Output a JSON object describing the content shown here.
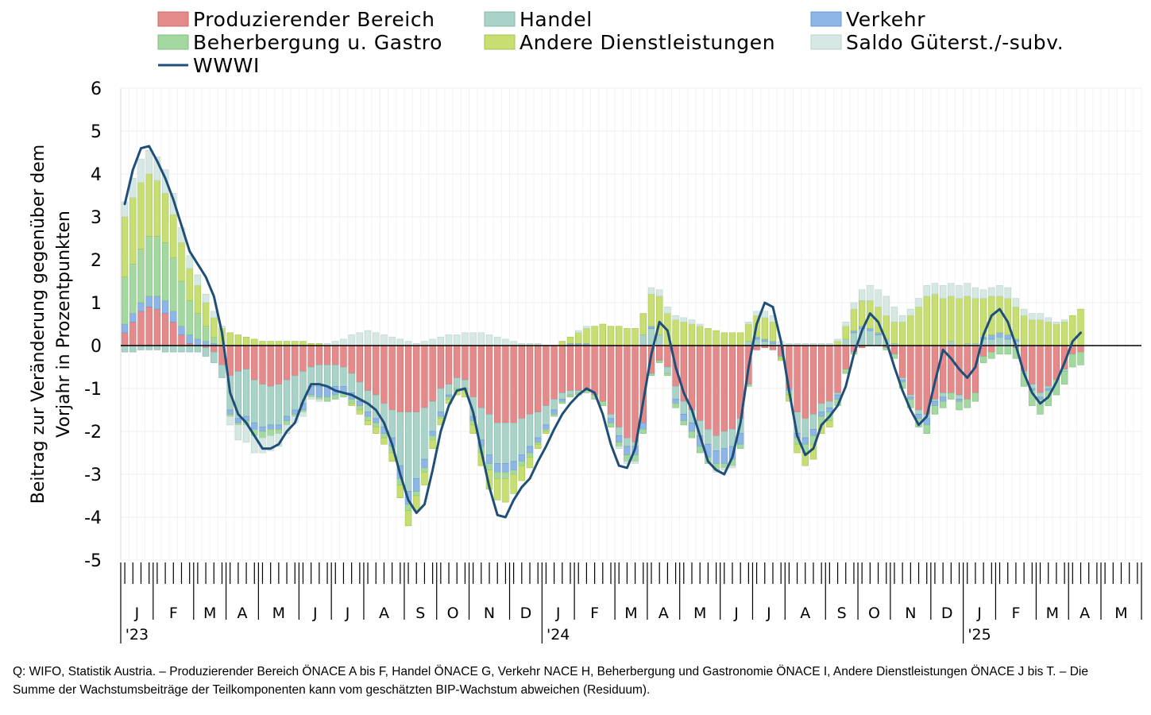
{
  "chart_data": {
    "type": "bar",
    "stacked": true,
    "title": "",
    "ylabel_lines": [
      "Beitrag zur Veränderung gegenüber dem",
      "Vorjahr in Prozentpunkten"
    ],
    "xlabel": "",
    "ylim": [
      -5,
      6
    ],
    "yticks": [
      6,
      5,
      4,
      3,
      2,
      1,
      0,
      -1,
      -2,
      -3,
      -4,
      -5
    ],
    "grid": true,
    "legend_position": "top",
    "weeks_per_month": [
      4,
      5,
      4,
      4,
      5,
      4,
      4,
      5,
      4,
      4,
      5,
      4,
      4,
      5,
      4,
      4,
      5,
      4,
      4,
      5,
      4,
      4,
      5,
      4,
      4,
      5,
      4,
      4,
      5
    ],
    "months": [
      "J",
      "F",
      "M",
      "A",
      "M",
      "J",
      "J",
      "A",
      "S",
      "O",
      "N",
      "D",
      "J",
      "F",
      "M",
      "A",
      "M",
      "J",
      "J",
      "A",
      "S",
      "O",
      "N",
      "D",
      "J",
      "F",
      "M",
      "A",
      "M"
    ],
    "year_labels": [
      {
        "label": "'23",
        "month_index": 0
      },
      {
        "label": "'24",
        "month_index": 12
      },
      {
        "label": "'25",
        "month_index": 24
      }
    ],
    "series": [
      {
        "key": "prod",
        "name": "Produzierender Bereich",
        "color": "#e58a8a",
        "edge": "#c96d6d"
      },
      {
        "key": "handel",
        "name": "Handel",
        "color": "#a9d3c8",
        "edge": "#86b7aa"
      },
      {
        "key": "verkehr",
        "name": "Verkehr",
        "color": "#8db6e6",
        "edge": "#6a98cf"
      },
      {
        "key": "beh",
        "name": "Beherbergung u. Gastro",
        "color": "#a4d8a1",
        "edge": "#84bd81"
      },
      {
        "key": "andere",
        "name": "Andere Dienstleistungen",
        "color": "#c7df72",
        "edge": "#a7c24e"
      },
      {
        "key": "saldo",
        "name": "Saldo Güterst./-subv.",
        "color": "#d6e8e3",
        "edge": "#b9d2cb"
      },
      {
        "key": "wwwi",
        "name": "WWWI",
        "color": "#1f4e79",
        "type": "line"
      }
    ],
    "values": {
      "wwwi": [
        3.3,
        4.1,
        4.6,
        4.65,
        4.3,
        3.9,
        3.4,
        2.8,
        2.2,
        1.9,
        1.6,
        1.15,
        0.3,
        -1.1,
        -1.6,
        -1.8,
        -2.1,
        -2.4,
        -2.4,
        -2.3,
        -2.0,
        -1.8,
        -1.3,
        -0.9,
        -0.9,
        -0.95,
        -1.05,
        -1.1,
        -1.15,
        -1.25,
        -1.35,
        -1.5,
        -1.8,
        -2.3,
        -3.0,
        -3.6,
        -3.9,
        -3.7,
        -2.9,
        -2.0,
        -1.4,
        -1.05,
        -1.0,
        -1.55,
        -2.45,
        -3.3,
        -3.95,
        -4.0,
        -3.6,
        -3.3,
        -3.1,
        -2.7,
        -2.35,
        -1.95,
        -1.6,
        -1.35,
        -1.15,
        -1.0,
        -1.1,
        -1.6,
        -2.3,
        -2.8,
        -2.85,
        -2.4,
        -1.3,
        -0.2,
        0.55,
        0.35,
        -0.5,
        -1.1,
        -1.5,
        -2.1,
        -2.7,
        -2.9,
        -3.0,
        -2.6,
        -1.8,
        -0.5,
        0.5,
        1.0,
        0.9,
        0.1,
        -1.05,
        -2.1,
        -2.55,
        -2.4,
        -1.85,
        -1.65,
        -1.4,
        -0.95,
        -0.2,
        0.35,
        0.75,
        0.55,
        0.1,
        -0.5,
        -1.05,
        -1.5,
        -1.85,
        -1.65,
        -0.85,
        -0.1,
        -0.3,
        -0.55,
        -0.75,
        -0.5,
        0.25,
        0.7,
        0.85,
        0.55,
        0.0,
        -0.65,
        -1.1,
        -1.35,
        -1.2,
        -0.85,
        -0.4,
        0.1,
        0.3
      ],
      "prod": [
        0.3,
        0.55,
        0.8,
        0.9,
        0.85,
        0.75,
        0.55,
        0.25,
        0.05,
        0.0,
        -0.05,
        -0.15,
        -0.45,
        -0.7,
        -0.6,
        -0.55,
        -0.8,
        -0.9,
        -0.95,
        -0.9,
        -0.8,
        -0.7,
        -0.6,
        -0.5,
        -0.45,
        -0.45,
        -0.45,
        -0.5,
        -0.65,
        -0.85,
        -1.05,
        -1.15,
        -1.35,
        -1.5,
        -1.55,
        -1.55,
        -1.55,
        -1.45,
        -1.3,
        -1.0,
        -0.9,
        -0.75,
        -0.8,
        -1.2,
        -1.45,
        -1.6,
        -1.8,
        -1.8,
        -1.8,
        -1.7,
        -1.6,
        -1.55,
        -1.4,
        -1.25,
        -1.1,
        -1.05,
        -1.05,
        -1.05,
        -1.15,
        -1.3,
        -1.6,
        -1.9,
        -2.15,
        -2.25,
        -1.8,
        -0.65,
        -0.35,
        -0.5,
        -0.95,
        -1.3,
        -1.5,
        -1.75,
        -1.95,
        -2.1,
        -2.0,
        -1.95,
        -1.7,
        -0.9,
        -0.1,
        -0.05,
        -0.1,
        -0.25,
        -1.0,
        -1.55,
        -1.7,
        -1.6,
        -1.35,
        -1.3,
        -1.1,
        -0.55,
        -0.15,
        -0.05,
        0.0,
        0.0,
        -0.05,
        -0.2,
        -0.75,
        -1.15,
        -1.5,
        -1.6,
        -1.25,
        -1.1,
        -1.1,
        -1.15,
        -1.25,
        -1.1,
        -0.25,
        -0.15,
        0.0,
        0.0,
        -0.05,
        -0.6,
        -0.9,
        -1.1,
        -0.95,
        -0.8,
        -0.55,
        -0.2,
        -0.15
      ],
      "handel": [
        -0.15,
        -0.15,
        -0.1,
        -0.1,
        -0.1,
        -0.15,
        -0.15,
        -0.15,
        -0.15,
        -0.15,
        -0.2,
        -0.25,
        -0.3,
        -0.8,
        -1.1,
        -1.1,
        -1.0,
        -1.0,
        -0.9,
        -0.95,
        -0.85,
        -0.8,
        -0.75,
        -0.45,
        -0.5,
        -0.5,
        -0.5,
        -0.45,
        -0.45,
        -0.45,
        -0.5,
        -0.55,
        -0.55,
        -0.65,
        -1.25,
        -1.85,
        -1.55,
        -1.2,
        -0.7,
        -0.55,
        -0.25,
        -0.25,
        -0.2,
        -0.45,
        -0.75,
        -0.95,
        -0.95,
        -0.95,
        -0.9,
        -0.85,
        -0.75,
        -0.6,
        -0.45,
        -0.25,
        -0.15,
        -0.1,
        -0.05,
        0.0,
        0.0,
        0.0,
        -0.1,
        -0.2,
        -0.2,
        -0.1,
        0.25,
        0.4,
        0.25,
        -0.15,
        -0.3,
        -0.3,
        -0.3,
        -0.35,
        -0.35,
        -0.35,
        -0.4,
        -0.4,
        -0.35,
        0.1,
        0.15,
        0.1,
        0.05,
        0.0,
        0.0,
        -0.5,
        -0.45,
        -0.35,
        -0.2,
        -0.15,
        -0.05,
        0.15,
        0.3,
        0.4,
        0.35,
        0.25,
        0.15,
        0.05,
        -0.05,
        -0.05,
        -0.1,
        -0.1,
        -0.05,
        -0.1,
        0.1,
        -0.1,
        0.05,
        0.05,
        0.15,
        0.15,
        0.2,
        0.15,
        0.1,
        -0.05,
        -0.1,
        -0.1,
        -0.05,
        0.0,
        -0.05,
        0.0,
        0.0
      ],
      "verkehr": [
        0.2,
        0.2,
        0.2,
        0.25,
        0.3,
        0.3,
        0.25,
        0.2,
        0.2,
        0.15,
        0.1,
        0.05,
        0.0,
        -0.1,
        -0.1,
        -0.1,
        -0.15,
        -0.1,
        -0.1,
        -0.1,
        -0.1,
        -0.1,
        -0.15,
        -0.2,
        -0.25,
        -0.25,
        -0.2,
        -0.15,
        -0.15,
        -0.1,
        -0.1,
        -0.1,
        -0.15,
        -0.2,
        -0.3,
        -0.3,
        -0.3,
        -0.2,
        -0.1,
        -0.1,
        -0.05,
        0.0,
        0.0,
        -0.1,
        -0.15,
        -0.2,
        -0.2,
        -0.2,
        -0.2,
        -0.15,
        -0.15,
        -0.1,
        -0.1,
        -0.1,
        -0.05,
        0.05,
        0.05,
        0.05,
        0.0,
        0.0,
        -0.1,
        -0.15,
        -0.2,
        -0.2,
        -0.15,
        0.05,
        0.0,
        0.0,
        -0.1,
        -0.15,
        -0.2,
        -0.25,
        -0.3,
        -0.3,
        -0.35,
        -0.3,
        -0.25,
        0.0,
        0.05,
        0.05,
        0.05,
        0.0,
        -0.05,
        -0.1,
        -0.15,
        -0.15,
        -0.1,
        -0.1,
        -0.1,
        0.0,
        0.05,
        0.05,
        0.05,
        0.05,
        0.0,
        0.0,
        -0.05,
        -0.05,
        -0.1,
        -0.15,
        -0.1,
        -0.1,
        0.0,
        -0.05,
        0.0,
        0.0,
        0.05,
        0.1,
        0.1,
        0.1,
        0.05,
        0.0,
        -0.05,
        -0.05,
        -0.05,
        0.0,
        0.0,
        0.0,
        0.0
      ],
      "beh": [
        1.1,
        1.15,
        1.25,
        1.4,
        1.4,
        1.35,
        1.25,
        1.05,
        0.8,
        0.6,
        0.35,
        0.15,
        0.0,
        -0.05,
        -0.05,
        -0.1,
        -0.15,
        -0.15,
        -0.15,
        -0.1,
        -0.1,
        -0.05,
        -0.05,
        -0.05,
        -0.05,
        -0.1,
        -0.1,
        -0.1,
        -0.1,
        -0.1,
        -0.1,
        -0.1,
        -0.1,
        -0.15,
        -0.15,
        -0.15,
        -0.1,
        -0.1,
        -0.1,
        -0.05,
        -0.05,
        -0.05,
        -0.05,
        -0.1,
        -0.15,
        -0.15,
        -0.15,
        -0.15,
        -0.1,
        -0.1,
        -0.1,
        -0.05,
        -0.05,
        -0.05,
        -0.05,
        -0.05,
        -0.05,
        -0.05,
        -0.1,
        -0.1,
        -0.1,
        -0.1,
        -0.15,
        -0.15,
        -0.1,
        -0.05,
        -0.05,
        -0.05,
        -0.1,
        -0.1,
        -0.15,
        -0.15,
        -0.15,
        -0.15,
        -0.1,
        -0.15,
        -0.1,
        -0.05,
        0.0,
        0.0,
        0.0,
        -0.05,
        -0.1,
        -0.15,
        -0.2,
        -0.2,
        -0.2,
        -0.2,
        -0.15,
        -0.1,
        -0.05,
        0.0,
        0.0,
        0.0,
        -0.05,
        -0.1,
        -0.15,
        -0.2,
        -0.2,
        -0.2,
        -0.2,
        -0.15,
        -0.15,
        -0.2,
        -0.2,
        -0.2,
        -0.15,
        -0.15,
        -0.2,
        -0.2,
        -0.25,
        -0.3,
        -0.35,
        -0.35,
        -0.35,
        -0.35,
        -0.3,
        -0.3,
        -0.3
      ],
      "andere": [
        1.4,
        1.55,
        1.55,
        1.45,
        1.3,
        1.15,
        1.0,
        0.9,
        0.75,
        0.65,
        0.55,
        0.45,
        0.4,
        0.3,
        0.25,
        0.2,
        0.15,
        0.1,
        0.1,
        0.1,
        0.1,
        0.1,
        0.1,
        0.05,
        0.05,
        0.0,
        0.0,
        0.0,
        -0.05,
        -0.1,
        -0.1,
        -0.15,
        -0.15,
        -0.2,
        -0.3,
        -0.35,
        -0.35,
        -0.3,
        -0.2,
        -0.15,
        -0.1,
        -0.1,
        -0.15,
        -0.2,
        -0.3,
        -0.45,
        -0.5,
        -0.55,
        -0.45,
        -0.35,
        -0.25,
        -0.1,
        -0.05,
        0.0,
        0.1,
        0.15,
        0.25,
        0.35,
        0.45,
        0.5,
        0.45,
        0.45,
        0.4,
        0.4,
        0.5,
        0.75,
        0.9,
        0.75,
        0.6,
        0.55,
        0.5,
        0.45,
        0.4,
        0.35,
        0.3,
        0.3,
        0.3,
        0.4,
        0.5,
        0.5,
        0.45,
        -0.05,
        -0.15,
        -0.2,
        -0.3,
        -0.35,
        -0.2,
        -0.15,
        0.1,
        0.3,
        0.5,
        0.6,
        0.65,
        0.6,
        0.55,
        0.5,
        0.55,
        0.7,
        0.9,
        1.15,
        1.2,
        1.1,
        1.05,
        1.1,
        1.1,
        1.05,
        0.9,
        0.9,
        0.85,
        0.85,
        0.75,
        0.7,
        0.6,
        0.6,
        0.55,
        0.5,
        0.55,
        0.7,
        0.85
      ],
      "saldo": [
        0.35,
        0.45,
        0.55,
        0.55,
        0.55,
        0.55,
        0.5,
        0.35,
        0.3,
        0.25,
        0.2,
        0.15,
        0.05,
        -0.2,
        -0.35,
        -0.4,
        -0.4,
        -0.35,
        -0.35,
        -0.3,
        -0.2,
        -0.15,
        -0.1,
        -0.05,
        -0.05,
        0.05,
        0.1,
        0.15,
        0.25,
        0.3,
        0.35,
        0.3,
        0.25,
        0.2,
        0.15,
        0.1,
        0.05,
        0.1,
        0.15,
        0.2,
        0.25,
        0.25,
        0.3,
        0.3,
        0.3,
        0.25,
        0.2,
        0.15,
        0.1,
        0.05,
        0.05,
        0.05,
        0.0,
        0.0,
        0.0,
        0.0,
        0.05,
        0.05,
        0.0,
        0.0,
        0.0,
        -0.05,
        -0.05,
        -0.05,
        0.0,
        0.15,
        0.15,
        0.15,
        0.1,
        0.1,
        0.1,
        0.05,
        0.0,
        -0.05,
        -0.05,
        -0.05,
        0.0,
        0.05,
        0.1,
        0.15,
        0.15,
        0.1,
        0.05,
        0.05,
        0.05,
        0.05,
        0.05,
        0.05,
        0.05,
        0.1,
        0.15,
        0.25,
        0.35,
        0.4,
        0.45,
        0.35,
        0.15,
        0.15,
        0.2,
        0.25,
        0.25,
        0.3,
        0.3,
        0.3,
        0.3,
        0.25,
        0.2,
        0.2,
        0.25,
        0.25,
        0.2,
        0.15,
        0.15,
        0.15,
        0.1,
        0.05,
        0.05,
        0.0,
        0.0
      ]
    }
  },
  "legend_labels": {
    "prod": "Produzierender Bereich",
    "handel": "Handel",
    "verkehr": "Verkehr",
    "beh": "Beherbergung u. Gastro",
    "andere": "Andere Dienstleistungen",
    "saldo": "Saldo Güterst./-subv.",
    "wwwi": "WWWI"
  },
  "source_note": "Q: WIFO, Statistik Austria. – Produzierender Bereich ÖNACE A bis F, Handel ÖNACE G, Verkehr NACE H, Beherbergung und Gastronomie ÖNACE I, Andere Dienstleistungen ÖNACE  J bis T. – Die Summe der Wachstumsbeiträge der Teilkomponenten kann vom geschätzten BIP-Wachstum abweichen (Residuum)."
}
